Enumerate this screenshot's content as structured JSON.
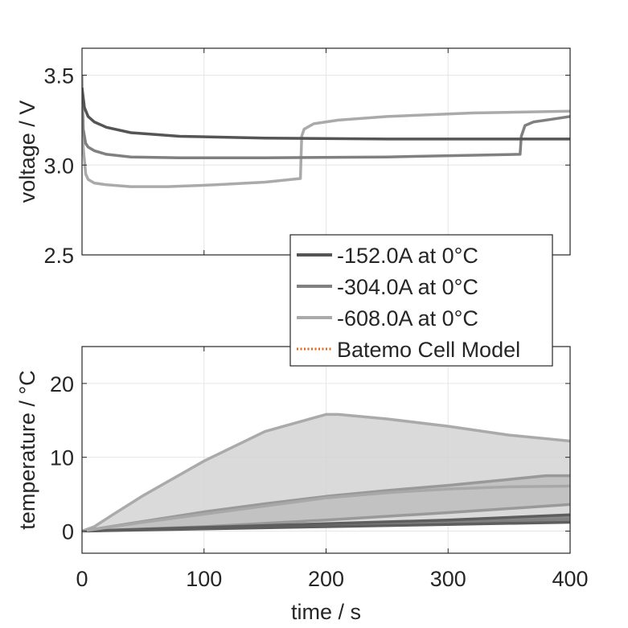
{
  "chart_data": [
    {
      "type": "line",
      "panel": "voltage",
      "ylabel": "voltage / V",
      "xlim": [
        0,
        400
      ],
      "ylim": [
        2.5,
        3.65
      ],
      "xticks": [
        "0",
        "100",
        "200",
        "300",
        "400"
      ],
      "yticks": [
        2.5,
        3.0,
        3.5
      ],
      "ytick_labels": [
        "2.5",
        "3.0",
        "3.5"
      ],
      "grid": true,
      "series": [
        {
          "name": "-152.0A at 0°C",
          "color": "#555555",
          "x": [
            0,
            2,
            5,
            10,
            20,
            40,
            80,
            150,
            250,
            400
          ],
          "y": [
            3.43,
            3.32,
            3.27,
            3.24,
            3.21,
            3.18,
            3.16,
            3.15,
            3.145,
            3.145
          ]
        },
        {
          "name": "-304.0A at 0°C",
          "color": "#808080",
          "x": [
            0,
            1,
            3,
            5,
            10,
            20,
            40,
            80,
            150,
            250,
            359,
            360,
            363,
            370,
            385,
            400
          ],
          "y": [
            3.42,
            3.2,
            3.12,
            3.1,
            3.08,
            3.06,
            3.045,
            3.04,
            3.04,
            3.045,
            3.06,
            3.16,
            3.22,
            3.24,
            3.255,
            3.27
          ]
        },
        {
          "name": "-608.0A at 0°C",
          "color": "#aaaaaa",
          "x": [
            0,
            1,
            3,
            5,
            10,
            20,
            40,
            70,
            110,
            150,
            179,
            180,
            182,
            190,
            210,
            250,
            320,
            400
          ],
          "y": [
            3.5,
            3.1,
            2.95,
            2.92,
            2.9,
            2.89,
            2.88,
            2.88,
            2.89,
            2.905,
            2.925,
            3.16,
            3.2,
            3.23,
            3.25,
            3.27,
            3.29,
            3.3
          ]
        }
      ]
    },
    {
      "type": "area",
      "panel": "temperature",
      "ylabel": "temperature / °C",
      "xlabel": "time / s",
      "xlim": [
        0,
        400
      ],
      "ylim": [
        -3,
        25
      ],
      "xticks": [
        0,
        100,
        200,
        300,
        400
      ],
      "xtick_labels": [
        "0",
        "100",
        "200",
        "300",
        "400"
      ],
      "yticks": [
        0,
        10,
        20
      ],
      "ytick_labels": [
        "0",
        "10",
        "20"
      ],
      "grid": true,
      "bands": [
        {
          "upper_x": [
            0,
            10,
            25,
            50,
            100,
            150,
            200,
            210,
            250,
            300,
            350,
            400
          ],
          "upper_y": [
            0,
            0.6,
            2.2,
            4.8,
            9.5,
            13.5,
            15.8,
            15.8,
            15.2,
            14.2,
            13.0,
            12.2
          ],
          "lower_x": [
            0,
            100,
            200,
            300,
            400
          ],
          "lower_y": [
            0,
            0.4,
            0.8,
            1.2,
            1.6
          ],
          "color": "#d3d3d3",
          "line": "#aaaaaa"
        },
        {
          "upper_x": [
            0,
            50,
            100,
            150,
            200,
            250,
            300,
            350,
            380,
            400
          ],
          "upper_y": [
            0,
            1.3,
            2.6,
            3.7,
            4.7,
            5.5,
            6.2,
            7.0,
            7.5,
            7.5
          ],
          "lower_x": [
            0,
            100,
            200,
            300,
            400
          ],
          "lower_y": [
            0,
            0.6,
            1.5,
            2.5,
            3.6
          ],
          "color": "#bdbdbd",
          "line": "#999999"
        },
        {
          "upper_x": [
            0,
            100,
            200,
            300,
            400
          ],
          "upper_y": [
            0,
            0.5,
            1.0,
            1.5,
            2.2
          ],
          "lower_x": [
            0,
            100,
            200,
            300,
            400
          ],
          "lower_y": [
            0,
            0.3,
            0.6,
            0.9,
            1.2
          ],
          "color": "#7a7a7a",
          "line": "#5e5e5e"
        }
      ],
      "lines": [
        {
          "x": [
            0,
            50,
            100,
            150,
            200,
            250,
            300,
            350,
            400
          ],
          "y": [
            0,
            1.2,
            2.3,
            3.4,
            4.5,
            5.2,
            5.7,
            6.0,
            6.1
          ],
          "color": "#a8a8a8"
        }
      ]
    }
  ],
  "legend": {
    "placement": "bottom-right of voltage panel",
    "entries": [
      {
        "label": "-152.0A at 0°C",
        "color": "#555555",
        "style": "solid"
      },
      {
        "label": "-304.0A at 0°C",
        "color": "#808080",
        "style": "solid"
      },
      {
        "label": "-608.0A at 0°C",
        "color": "#aaaaaa",
        "style": "solid"
      },
      {
        "label": "Batemo Cell Model",
        "color": "#e8651a",
        "style": "dotted"
      }
    ]
  }
}
